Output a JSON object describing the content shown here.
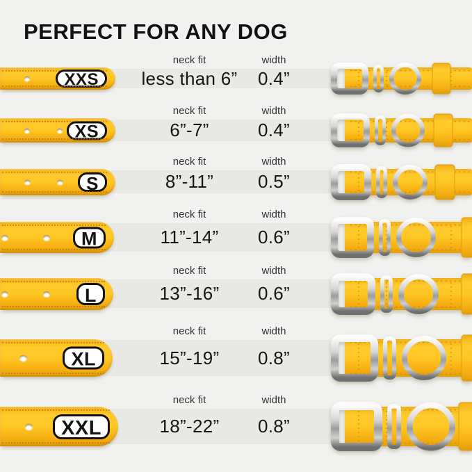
{
  "title": "PERFECT FOR ANY DOG",
  "table": {
    "neck_fit_header": "neck fit",
    "width_header": "width"
  },
  "rows": [
    {
      "size": "XXS",
      "neck_fit": "less than 6”",
      "width": "0.4”"
    },
    {
      "size": "XS",
      "neck_fit": "6”-7”",
      "width": "0.4”"
    },
    {
      "size": "S",
      "neck_fit": "8”-11”",
      "width": "0.5”"
    },
    {
      "size": "M",
      "neck_fit": "11”-14”",
      "width": "0.6”"
    },
    {
      "size": "L",
      "neck_fit": "13”-16”",
      "width": "0.6”"
    },
    {
      "size": "XL",
      "neck_fit": "15”-19”",
      "width": "0.8”"
    },
    {
      "size": "XXL",
      "neck_fit": "18”-22”",
      "width": "0.8”"
    }
  ],
  "chart_data": {
    "type": "table",
    "title": "PERFECT FOR ANY DOG",
    "columns": [
      "size",
      "neck fit",
      "width"
    ],
    "rows": [
      [
        "XXS",
        "less than 6”",
        "0.4”"
      ],
      [
        "XS",
        "6”-7”",
        "0.4”"
      ],
      [
        "S",
        "8”-11”",
        "0.5”"
      ],
      [
        "M",
        "11”-14”",
        "0.6”"
      ],
      [
        "L",
        "13”-16”",
        "0.6”"
      ],
      [
        "XL",
        "15”-19”",
        "0.8”"
      ],
      [
        "XXL",
        "18”-22”",
        "0.8”"
      ]
    ]
  },
  "colors": {
    "collar_yellow": "#FFC723",
    "collar_edge": "#E19E0C",
    "metal_silver": "#B9B9B9",
    "background": "#F1F1EF",
    "row_band": "#E8E8E5",
    "text": "#161616"
  }
}
